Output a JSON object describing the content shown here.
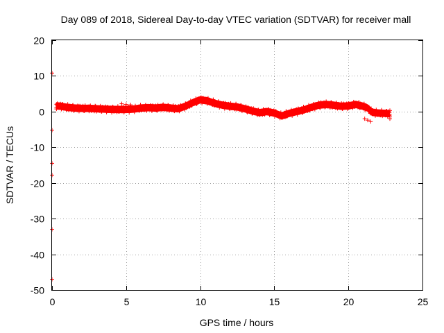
{
  "chart_data": {
    "type": "scatter",
    "title": "Day 089 of 2018, Sidereal Day-to-day VTEC variation (SDTVAR) for receiver mall",
    "xlabel": "GPS time / hours",
    "ylabel": "SDTVAR / TECUs",
    "xlim": [
      0,
      25
    ],
    "ylim": [
      -50,
      20
    ],
    "xticks": [
      0,
      5,
      10,
      15,
      20,
      25
    ],
    "yticks": [
      20,
      10,
      0,
      -10,
      -20,
      -30,
      -40,
      -50
    ],
    "xtick_labels": [
      "0",
      "5",
      "10",
      "15",
      "20",
      "25"
    ],
    "ytick_labels": [
      "20",
      "10",
      "0",
      "-10",
      "-20",
      "-30",
      "-40",
      "-50"
    ],
    "grid": true,
    "marker_color": "#ff0000",
    "series": [
      {
        "name": "SDTVAR",
        "color": "#ff0000",
        "band_halfwidth": 0.9,
        "points": [
          [
            0.3,
            1.6
          ],
          [
            0.6,
            1.5
          ],
          [
            1.0,
            1.2
          ],
          [
            1.5,
            1.0
          ],
          [
            2.0,
            0.9
          ],
          [
            2.5,
            0.9
          ],
          [
            3.0,
            0.8
          ],
          [
            3.5,
            0.7
          ],
          [
            4.0,
            0.6
          ],
          [
            4.5,
            0.6
          ],
          [
            5.0,
            0.6
          ],
          [
            5.5,
            0.7
          ],
          [
            6.0,
            1.0
          ],
          [
            6.5,
            1.1
          ],
          [
            7.0,
            1.0
          ],
          [
            7.5,
            1.2
          ],
          [
            8.0,
            1.0
          ],
          [
            8.5,
            0.8
          ],
          [
            9.0,
            1.5
          ],
          [
            9.5,
            2.5
          ],
          [
            10.0,
            3.3
          ],
          [
            10.5,
            3.0
          ],
          [
            11.0,
            2.3
          ],
          [
            11.5,
            1.8
          ],
          [
            12.0,
            1.5
          ],
          [
            12.5,
            1.3
          ],
          [
            13.0,
            0.8
          ],
          [
            13.5,
            0.2
          ],
          [
            14.0,
            -0.3
          ],
          [
            14.5,
            0.0
          ],
          [
            15.0,
            -0.4
          ],
          [
            15.5,
            -1.2
          ],
          [
            16.0,
            -0.5
          ],
          [
            16.5,
            0.0
          ],
          [
            17.0,
            0.5
          ],
          [
            17.5,
            1.2
          ],
          [
            18.0,
            1.8
          ],
          [
            18.5,
            2.0
          ],
          [
            19.0,
            1.8
          ],
          [
            19.5,
            1.5
          ],
          [
            20.0,
            1.6
          ],
          [
            20.5,
            2.0
          ],
          [
            21.0,
            1.5
          ],
          [
            21.3,
            1.0
          ],
          [
            21.6,
            -0.2
          ],
          [
            22.0,
            -0.4
          ],
          [
            22.5,
            -0.5
          ],
          [
            22.8,
            -0.6
          ]
        ],
        "extra_points": [
          [
            4.7,
            2.2
          ],
          [
            5.0,
            2.0
          ],
          [
            5.3,
            1.9
          ],
          [
            21.1,
            -2.0
          ],
          [
            21.3,
            -2.4
          ],
          [
            21.5,
            -2.8
          ],
          [
            22.8,
            -1.5
          ],
          [
            22.8,
            -2.0
          ],
          [
            22.8,
            0.3
          ],
          [
            0.0,
            10.8
          ],
          [
            0.0,
            -5.2
          ],
          [
            0.0,
            -14.5
          ],
          [
            0.0,
            -17.8
          ],
          [
            0.0,
            -33.0
          ],
          [
            0.0,
            -47.0
          ]
        ]
      }
    ]
  }
}
